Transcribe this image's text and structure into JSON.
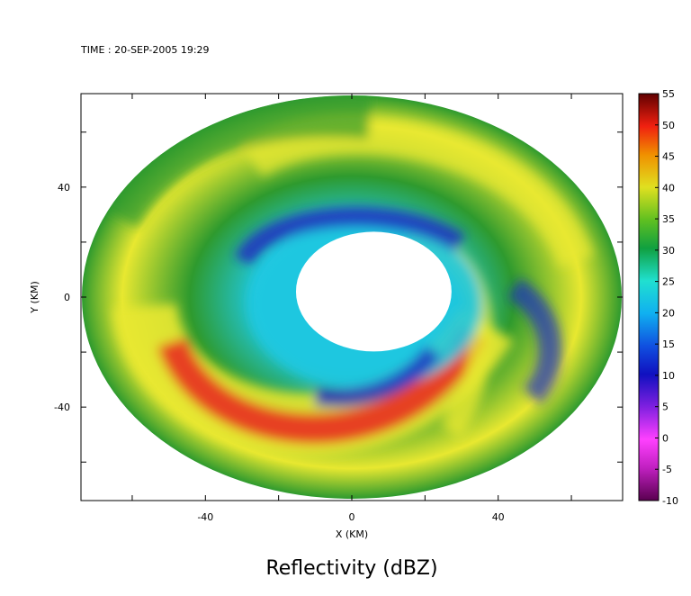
{
  "chart_data": {
    "type": "heatmap",
    "time_label": "TIME : 20-SEP-2005 19:29",
    "title": "Reflectivity (dBZ)",
    "xlabel": "X (KM)",
    "ylabel": "Y (KM)",
    "xlim": [
      -74,
      74
    ],
    "ylim": [
      -74,
      74
    ],
    "x_ticks": [
      -40,
      0,
      40
    ],
    "y_ticks": [
      -40,
      0,
      40
    ],
    "colorbar": {
      "min": -10,
      "max": 55,
      "ticks": [
        55,
        50,
        45,
        40,
        35,
        30,
        25,
        20,
        15,
        10,
        5,
        0,
        -5,
        -10
      ]
    },
    "colors": {
      "eye": "#ffffff",
      "weak_echo": "#1f2fc0",
      "light_echo": "#20c8e0",
      "moderate_echo": "#2e9a2e",
      "strong_echo": "#e8e830",
      "intense_echo": "#e83020"
    },
    "features": [
      {
        "label": "eye",
        "center_km": [
          6,
          2
        ],
        "radius_km": 17
      },
      {
        "label": "eyewall",
        "center_km": [
          0,
          0
        ],
        "radius_km": 30,
        "peak_dbz": 50
      },
      {
        "label": "rainband",
        "peak_dbz": 45
      }
    ]
  }
}
